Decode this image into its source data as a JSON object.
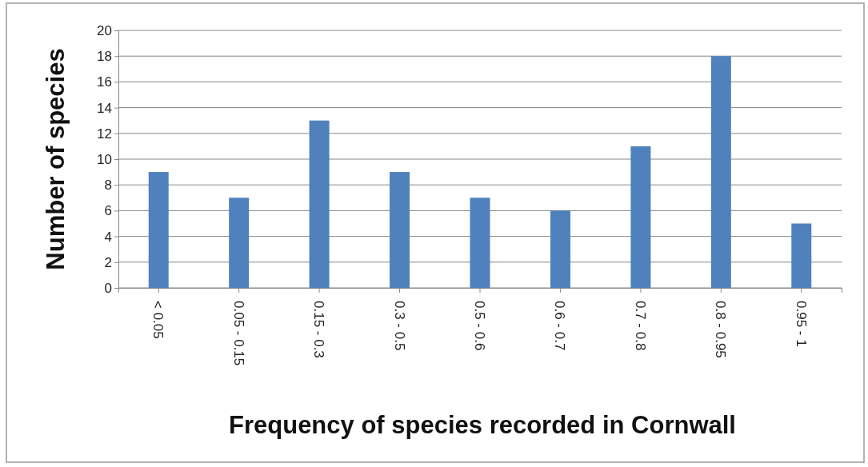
{
  "chart_data": {
    "type": "bar",
    "xlabel": "Frequency of species recorded in Cornwall",
    "ylabel": "Number of species",
    "categories": [
      "< 0.05",
      "0.05 - 0.15",
      "0.15 - 0.3",
      "0.3 - 0.5",
      "0.5 - 0.6",
      "0.6 - 0.7",
      "0.7 - 0.8",
      "0.8 - 0.95",
      "0.95 - 1"
    ],
    "values": [
      9,
      7,
      13,
      9,
      7,
      6,
      11,
      18,
      5
    ],
    "color": "#4f81bd",
    "ylim": [
      0,
      20
    ],
    "yticks": [
      0,
      2,
      4,
      6,
      8,
      10,
      12,
      14,
      16,
      18,
      20
    ],
    "grid": "y"
  }
}
